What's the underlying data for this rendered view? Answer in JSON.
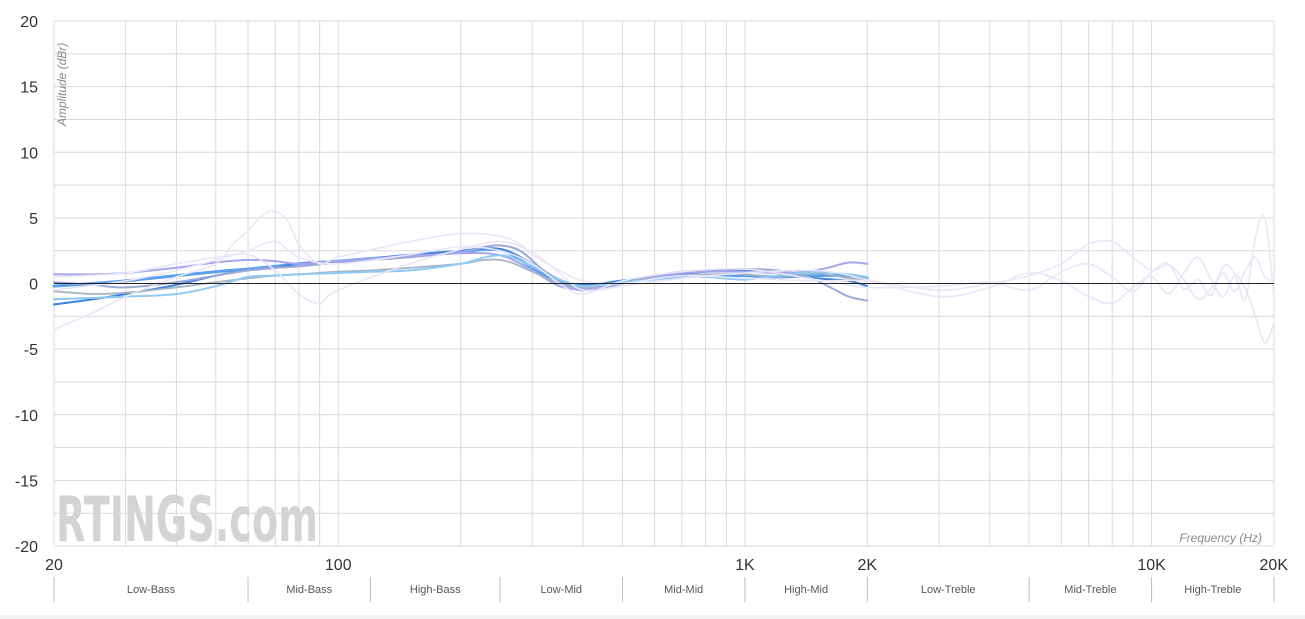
{
  "watermark": "RTINGS.com",
  "chart_data": {
    "type": "line",
    "title": "",
    "xlabel": "Frequency (Hz)",
    "ylabel": "Amplitude (dBr)",
    "xscale": "log",
    "xlim": [
      20,
      20000
    ],
    "ylim": [
      -20,
      20
    ],
    "grid": true,
    "y_ticks": [
      {
        "value": 20,
        "label": "20"
      },
      {
        "value": 15,
        "label": "15"
      },
      {
        "value": 10,
        "label": "10"
      },
      {
        "value": 5,
        "label": "5"
      },
      {
        "value": 0,
        "label": "0"
      },
      {
        "value": -5,
        "label": "-5"
      },
      {
        "value": -10,
        "label": "-10"
      },
      {
        "value": -15,
        "label": "-15"
      },
      {
        "value": -20,
        "label": "-20"
      }
    ],
    "x_ticks": [
      {
        "value": 20,
        "label": "20"
      },
      {
        "value": 100,
        "label": "100"
      },
      {
        "value": 1000,
        "label": "1K"
      },
      {
        "value": 2000,
        "label": "2K"
      },
      {
        "value": 10000,
        "label": "10K"
      },
      {
        "value": 20000,
        "label": "20K"
      }
    ],
    "bands": [
      {
        "label": "Low-Bass",
        "from": 20,
        "to": 60
      },
      {
        "label": "Mid-Bass",
        "from": 60,
        "to": 120
      },
      {
        "label": "High-Bass",
        "from": 120,
        "to": 250
      },
      {
        "label": "Low-Mid",
        "from": 250,
        "to": 500
      },
      {
        "label": "Mid-Mid",
        "from": 500,
        "to": 1000
      },
      {
        "label": "High-Mid",
        "from": 1000,
        "to": 2000
      },
      {
        "label": "Low-Treble",
        "from": 2000,
        "to": 5000
      },
      {
        "label": "Mid-Treble",
        "from": 5000,
        "to": 10000
      },
      {
        "label": "High-Treble",
        "from": 10000,
        "to": 20000
      }
    ],
    "colors": {
      "grid": "#d9d9d9",
      "zero_line": "#222222",
      "series_main": "#5aa0ef",
      "series_light": "#e6e6f7"
    },
    "series": [
      {
        "color": "#5aa0ef",
        "width": 3,
        "opacity": 1,
        "points": [
          [
            20,
            -0.2
          ],
          [
            25,
            0
          ],
          [
            30,
            0.2
          ],
          [
            40,
            0.6
          ],
          [
            50,
            0.9
          ],
          [
            60,
            1.1
          ],
          [
            70,
            1.3
          ],
          [
            80,
            1.5
          ],
          [
            100,
            1.7
          ],
          [
            120,
            1.9
          ],
          [
            150,
            2.1
          ],
          [
            200,
            2.4
          ],
          [
            230,
            2.6
          ],
          [
            260,
            2.4
          ],
          [
            300,
            1.2
          ],
          [
            350,
            0.1
          ],
          [
            400,
            -0.2
          ],
          [
            500,
            0.2
          ],
          [
            600,
            0.4
          ],
          [
            700,
            0.5
          ],
          [
            800,
            0.6
          ],
          [
            1000,
            0.6
          ],
          [
            1200,
            0.5
          ],
          [
            1500,
            0.6
          ],
          [
            1800,
            0.6
          ],
          [
            2000,
            0.4
          ]
        ]
      },
      {
        "color": "#3c82de",
        "width": 2,
        "opacity": 1,
        "points": [
          [
            20,
            -1.6
          ],
          [
            25,
            -1.2
          ],
          [
            30,
            -0.8
          ],
          [
            40,
            -0.1
          ],
          [
            50,
            0.6
          ],
          [
            60,
            1.0
          ],
          [
            70,
            1.2
          ],
          [
            80,
            1.5
          ],
          [
            100,
            1.7
          ],
          [
            120,
            1.9
          ],
          [
            150,
            2.2
          ],
          [
            200,
            2.5
          ],
          [
            230,
            2.7
          ],
          [
            260,
            2.5
          ],
          [
            300,
            1.5
          ],
          [
            350,
            0.3
          ],
          [
            400,
            -0.1
          ],
          [
            500,
            0.2
          ],
          [
            600,
            0.5
          ],
          [
            700,
            0.7
          ],
          [
            800,
            0.9
          ],
          [
            1000,
            1.0
          ],
          [
            1200,
            0.8
          ],
          [
            1500,
            0.4
          ],
          [
            1800,
            0.2
          ],
          [
            2000,
            -0.2
          ]
        ]
      },
      {
        "color": "#9aa9d8",
        "width": 2,
        "opacity": 1,
        "points": [
          [
            20,
            0.1
          ],
          [
            25,
            -0.1
          ],
          [
            30,
            -0.3
          ],
          [
            40,
            0.1
          ],
          [
            50,
            0.6
          ],
          [
            60,
            1.0
          ],
          [
            70,
            1.2
          ],
          [
            80,
            1.3
          ],
          [
            100,
            1.6
          ],
          [
            120,
            1.8
          ],
          [
            150,
            2.0
          ],
          [
            200,
            2.4
          ],
          [
            230,
            2.8
          ],
          [
            250,
            2.9
          ],
          [
            280,
            2.5
          ],
          [
            320,
            1.0
          ],
          [
            370,
            -0.3
          ],
          [
            420,
            -0.5
          ],
          [
            500,
            0
          ],
          [
            600,
            0.6
          ],
          [
            700,
            0.9
          ],
          [
            800,
            1.0
          ],
          [
            1000,
            1.1
          ],
          [
            1200,
            1.0
          ],
          [
            1400,
            0.6
          ],
          [
            1600,
            -0.2
          ],
          [
            1800,
            -1.0
          ],
          [
            2000,
            -1.3
          ]
        ]
      },
      {
        "color": "#a6a6ee",
        "width": 2,
        "opacity": 1,
        "points": [
          [
            20,
            0.7
          ],
          [
            25,
            0.7
          ],
          [
            30,
            0.8
          ],
          [
            40,
            1.2
          ],
          [
            50,
            1.6
          ],
          [
            60,
            1.8
          ],
          [
            70,
            1.7
          ],
          [
            80,
            1.5
          ],
          [
            100,
            1.7
          ],
          [
            120,
            1.9
          ],
          [
            150,
            2.1
          ],
          [
            200,
            2.3
          ],
          [
            230,
            2.3
          ],
          [
            260,
            2.0
          ],
          [
            300,
            1.0
          ],
          [
            350,
            -0.2
          ],
          [
            400,
            -0.4
          ],
          [
            500,
            0
          ],
          [
            600,
            0.5
          ],
          [
            700,
            0.8
          ],
          [
            800,
            0.9
          ],
          [
            1000,
            0.9
          ],
          [
            1200,
            0.8
          ],
          [
            1400,
            0.9
          ],
          [
            1600,
            1.2
          ],
          [
            1800,
            1.6
          ],
          [
            2000,
            1.5
          ]
        ]
      },
      {
        "color": "#a7b4c6",
        "width": 1.8,
        "opacity": 1,
        "points": [
          [
            20,
            -0.6
          ],
          [
            25,
            -0.8
          ],
          [
            30,
            -0.7
          ],
          [
            40,
            -0.3
          ],
          [
            50,
            0.1
          ],
          [
            60,
            0.4
          ],
          [
            70,
            0.6
          ],
          [
            80,
            0.7
          ],
          [
            100,
            0.9
          ],
          [
            120,
            1.0
          ],
          [
            150,
            1.2
          ],
          [
            200,
            1.5
          ],
          [
            230,
            1.8
          ],
          [
            260,
            1.7
          ],
          [
            300,
            0.9
          ],
          [
            350,
            0
          ],
          [
            400,
            -0.3
          ],
          [
            500,
            0.1
          ],
          [
            600,
            0.4
          ],
          [
            700,
            0.6
          ],
          [
            800,
            0.7
          ],
          [
            1000,
            0.7
          ],
          [
            1200,
            0.5
          ],
          [
            1500,
            0.8
          ],
          [
            1800,
            0.4
          ],
          [
            2000,
            0.3
          ]
        ]
      },
      {
        "color": "#8ecaf4",
        "width": 2,
        "opacity": 1,
        "points": [
          [
            20,
            -1.2
          ],
          [
            25,
            -1.1
          ],
          [
            30,
            -1.0
          ],
          [
            40,
            -0.8
          ],
          [
            50,
            -0.2
          ],
          [
            60,
            0.5
          ],
          [
            70,
            0.6
          ],
          [
            80,
            0.7
          ],
          [
            100,
            0.8
          ],
          [
            120,
            0.9
          ],
          [
            150,
            1.0
          ],
          [
            200,
            1.5
          ],
          [
            230,
            2.0
          ],
          [
            260,
            2.1
          ],
          [
            300,
            1.3
          ],
          [
            350,
            0.3
          ],
          [
            400,
            -0.2
          ],
          [
            500,
            0.1
          ],
          [
            600,
            0.3
          ],
          [
            700,
            0.5
          ],
          [
            800,
            0.5
          ],
          [
            1000,
            0.3
          ],
          [
            1200,
            0.6
          ],
          [
            1500,
            0.9
          ],
          [
            1800,
            0.7
          ],
          [
            2000,
            0.5
          ]
        ]
      },
      {
        "color": "#e8e6f8",
        "width": 1.6,
        "opacity": 1,
        "points": [
          [
            20,
            -3.5
          ],
          [
            25,
            -2.2
          ],
          [
            30,
            -1.0
          ],
          [
            40,
            0.5
          ],
          [
            50,
            1.5
          ],
          [
            55,
            3.0
          ],
          [
            60,
            4.0
          ],
          [
            65,
            5.2
          ],
          [
            70,
            5.5
          ],
          [
            75,
            4.8
          ],
          [
            80,
            3.0
          ],
          [
            90,
            1.5
          ],
          [
            100,
            2.0
          ],
          [
            150,
            3.2
          ],
          [
            200,
            3.8
          ],
          [
            250,
            3.6
          ],
          [
            280,
            3.0
          ],
          [
            300,
            2.2
          ],
          [
            350,
            1.0
          ],
          [
            400,
            0.2
          ],
          [
            500,
            0
          ],
          [
            700,
            0.6
          ],
          [
            1000,
            0.4
          ],
          [
            1500,
            0.2
          ],
          [
            2000,
            0.2
          ],
          [
            3000,
            -0.5
          ],
          [
            4000,
            0
          ],
          [
            5000,
            0.6
          ],
          [
            6000,
            1.5
          ],
          [
            7000,
            3.0
          ],
          [
            8000,
            3.2
          ],
          [
            9000,
            2.0
          ],
          [
            10000,
            1.0
          ],
          [
            11000,
            1.4
          ],
          [
            12000,
            0.3
          ],
          [
            13000,
            -1.2
          ],
          [
            14000,
            -0.4
          ],
          [
            15000,
            0.8
          ],
          [
            16000,
            -0.6
          ],
          [
            17000,
            1.0
          ],
          [
            18000,
            2.0
          ],
          [
            19000,
            0.5
          ],
          [
            20000,
            0.2
          ]
        ]
      },
      {
        "color": "#e8e6f8",
        "width": 1.6,
        "opacity": 1,
        "points": [
          [
            20,
            0.5
          ],
          [
            30,
            0.8
          ],
          [
            40,
            1.5
          ],
          [
            50,
            2.0
          ],
          [
            60,
            2.2
          ],
          [
            70,
            1.0
          ],
          [
            80,
            -0.8
          ],
          [
            90,
            -1.5
          ],
          [
            100,
            -0.5
          ],
          [
            150,
            1.5
          ],
          [
            200,
            2.6
          ],
          [
            250,
            3.2
          ],
          [
            300,
            2.4
          ],
          [
            350,
            0.8
          ],
          [
            400,
            -0.5
          ],
          [
            500,
            -0.2
          ],
          [
            700,
            0.4
          ],
          [
            1000,
            0.8
          ],
          [
            1500,
            1.0
          ],
          [
            2000,
            0.3
          ],
          [
            3000,
            -1.0
          ],
          [
            4000,
            -0.3
          ],
          [
            5000,
            0.8
          ],
          [
            6000,
            0.2
          ],
          [
            7000,
            -1.0
          ],
          [
            8000,
            -1.5
          ],
          [
            9000,
            -0.3
          ],
          [
            10000,
            0.5
          ],
          [
            11000,
            -0.8
          ],
          [
            12000,
            0.8
          ],
          [
            13000,
            2.0
          ],
          [
            14000,
            0.3
          ],
          [
            15000,
            -1.0
          ],
          [
            16000,
            0.6
          ],
          [
            17000,
            -0.4
          ],
          [
            18000,
            -2.5
          ],
          [
            19000,
            -4.5
          ],
          [
            20000,
            -3.0
          ]
        ]
      },
      {
        "color": "#e8e6f8",
        "width": 1.6,
        "opacity": 1,
        "points": [
          [
            20,
            -0.5
          ],
          [
            30,
            0.2
          ],
          [
            40,
            1.0
          ],
          [
            50,
            1.8
          ],
          [
            60,
            2.5
          ],
          [
            70,
            3.2
          ],
          [
            80,
            2.0
          ],
          [
            100,
            1.5
          ],
          [
            150,
            2.2
          ],
          [
            200,
            2.8
          ],
          [
            250,
            2.5
          ],
          [
            300,
            1.5
          ],
          [
            350,
            0.0
          ],
          [
            400,
            -0.8
          ],
          [
            500,
            0.2
          ],
          [
            700,
            0.9
          ],
          [
            1000,
            1.1
          ],
          [
            1500,
            0.3
          ],
          [
            2000,
            -0.3
          ],
          [
            3000,
            -0.2
          ],
          [
            4000,
            0.1
          ],
          [
            5000,
            -0.5
          ],
          [
            6000,
            0.9
          ],
          [
            7000,
            1.5
          ],
          [
            8000,
            0.5
          ],
          [
            9000,
            -0.6
          ],
          [
            10000,
            0.9
          ],
          [
            11000,
            1.5
          ],
          [
            12000,
            -0.4
          ],
          [
            13000,
            0.3
          ],
          [
            14000,
            -0.9
          ],
          [
            15000,
            1.3
          ],
          [
            16000,
            0.8
          ],
          [
            17000,
            -1.2
          ],
          [
            18000,
            3.5
          ],
          [
            19000,
            5.0
          ],
          [
            20000,
            -1.0
          ]
        ]
      }
    ]
  }
}
